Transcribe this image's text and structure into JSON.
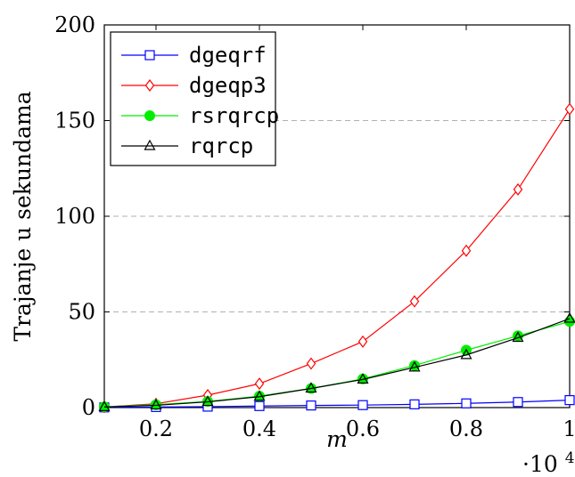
{
  "chart_data": {
    "type": "line",
    "xlabel": "m",
    "ylabel": "Trajanje u sekundama",
    "x_scale_label": "·10",
    "x_scale_exponent": "4",
    "x": [
      0.1,
      0.2,
      0.3,
      0.4,
      0.5,
      0.6,
      0.7,
      0.8,
      0.9,
      1.0
    ],
    "xlim": [
      0.1,
      1.0
    ],
    "ylim": [
      0,
      200
    ],
    "x_ticks": [
      0.2,
      0.4,
      0.6,
      0.8,
      1.0
    ],
    "x_tick_labels": [
      "0.2",
      "0.4",
      "0.6",
      "0.8",
      "1"
    ],
    "y_ticks": [
      0,
      50,
      100,
      150,
      200
    ],
    "y_tick_labels": [
      "0",
      "50",
      "100",
      "150",
      "200"
    ],
    "grid": "horizontal dashed",
    "legend_position": "top-left",
    "series": [
      {
        "name": "dgeqrf",
        "color": "#0000ff",
        "marker": "square",
        "values": [
          0.1,
          0.3,
          0.5,
          0.8,
          1.1,
          1.3,
          1.7,
          2.2,
          2.9,
          3.9
        ]
      },
      {
        "name": "dgeqp3",
        "color": "#ff0000",
        "marker": "diamond",
        "values": [
          0.3,
          2.0,
          6.5,
          12.5,
          23.0,
          34.5,
          55.5,
          82.0,
          114.0,
          156.0
        ]
      },
      {
        "name": "rsrqrcp",
        "color": "#00ee00",
        "marker": "circle",
        "values": [
          0.4,
          1.5,
          3.2,
          6.0,
          10.0,
          15.0,
          22.0,
          30.0,
          37.5,
          45.0
        ]
      },
      {
        "name": "rqrcp",
        "color": "#000000",
        "marker": "triangle",
        "values": [
          0.3,
          1.2,
          3.0,
          5.7,
          10.0,
          14.7,
          21.0,
          27.5,
          36.5,
          46.5
        ]
      }
    ]
  }
}
